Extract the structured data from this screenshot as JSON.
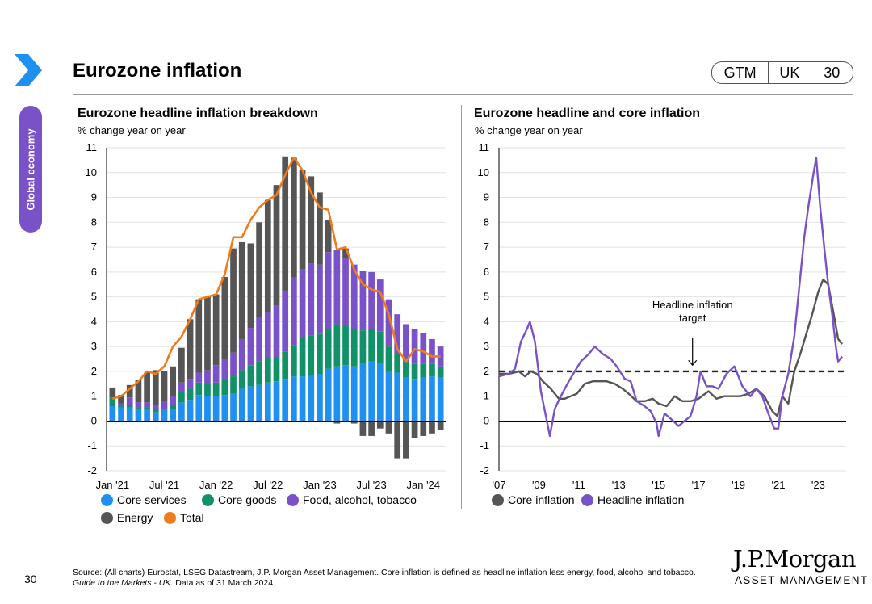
{
  "page": {
    "title": "Eurozone inflation",
    "section": "Global economy",
    "badges": [
      "GTM",
      "UK",
      "30"
    ],
    "page_number": "30",
    "source_main": "Source: (All charts) Eurostat, LSEG Datastream, J.P. Morgan Asset Management. Core inflation is defined as headline inflation less energy, food, alcohol and tobacco.",
    "source_italic": "Guide to the Markets - UK.",
    "source_tail": "Data as of 31 March 2024.",
    "logo_line1": "J.P.Morgan",
    "logo_line2": "ASSET MANAGEMENT"
  },
  "left_chart": {
    "title": "Eurozone headline inflation breakdown",
    "subtitle": "% change year on year",
    "legend": [
      {
        "label": "Core services",
        "color": "#1e90ef"
      },
      {
        "label": "Core goods",
        "color": "#119167"
      },
      {
        "label": "Food, alcohol, tobacco",
        "color": "#7a52c7"
      },
      {
        "label": "Energy",
        "color": "#555555"
      },
      {
        "label": "Total",
        "color": "#f07b1b"
      }
    ]
  },
  "right_chart": {
    "title": "Eurozone headline and core inflation",
    "subtitle": "% change year on year",
    "annotation_line1": "Headline inflation",
    "annotation_line2": "target",
    "legend": [
      {
        "label": "Core inflation",
        "color": "#555555"
      },
      {
        "label": "Headline inflation",
        "color": "#7a52c7"
      }
    ]
  },
  "chart_data": [
    {
      "type": "bar",
      "stacked": true,
      "title": "Eurozone headline inflation breakdown",
      "ylabel": "% change year on year",
      "ylim": [
        -2,
        11
      ],
      "yticks": [
        -2,
        -1,
        0,
        1,
        2,
        3,
        4,
        5,
        6,
        7,
        8,
        9,
        10,
        11
      ],
      "tick_labels": [
        "Jan '21",
        "Jul '21",
        "Jan '22",
        "Jul '22",
        "Jan '23",
        "Jul '23",
        "Jan '24"
      ],
      "tick_index": [
        0,
        6,
        12,
        18,
        24,
        30,
        36
      ],
      "categories": [
        "Jan '21",
        "Feb '21",
        "Mar '21",
        "Apr '21",
        "May '21",
        "Jun '21",
        "Jul '21",
        "Aug '21",
        "Sep '21",
        "Oct '21",
        "Nov '21",
        "Dec '21",
        "Jan '22",
        "Feb '22",
        "Mar '22",
        "Apr '22",
        "May '22",
        "Jun '22",
        "Jul '22",
        "Aug '22",
        "Sep '22",
        "Oct '22",
        "Nov '22",
        "Dec '22",
        "Jan '23",
        "Feb '23",
        "Mar '23",
        "Apr '23",
        "May '23",
        "Jun '23",
        "Jul '23",
        "Aug '23",
        "Sep '23",
        "Oct '23",
        "Nov '23",
        "Dec '23",
        "Jan '24",
        "Feb '24",
        "Mar '24"
      ],
      "series": [
        {
          "name": "Core services",
          "values": [
            0.6,
            0.55,
            0.55,
            0.45,
            0.45,
            0.35,
            0.45,
            0.5,
            0.75,
            0.85,
            1.05,
            1.0,
            1.0,
            1.05,
            1.1,
            1.3,
            1.4,
            1.45,
            1.55,
            1.6,
            1.7,
            1.8,
            1.8,
            1.85,
            1.9,
            2.1,
            2.2,
            2.25,
            2.2,
            2.35,
            2.4,
            2.35,
            2.0,
            1.95,
            1.75,
            1.7,
            1.75,
            1.8,
            1.75
          ]
        },
        {
          "name": "Core goods",
          "values": [
            0.35,
            0.05,
            0.1,
            0.1,
            0.1,
            0.15,
            0.05,
            0.15,
            0.45,
            0.45,
            0.5,
            0.5,
            0.55,
            0.6,
            0.7,
            0.75,
            0.85,
            0.95,
            1.0,
            0.95,
            1.1,
            1.25,
            1.55,
            1.6,
            1.6,
            1.6,
            1.7,
            1.6,
            1.5,
            1.3,
            1.3,
            1.25,
            1.0,
            0.75,
            0.65,
            0.6,
            0.55,
            0.5,
            0.45
          ]
        },
        {
          "name": "Food, alcohol, tobacco",
          "values": [
            0.0,
            0.1,
            0.3,
            0.2,
            0.2,
            0.15,
            0.3,
            0.35,
            0.35,
            0.4,
            0.4,
            0.55,
            0.7,
            0.85,
            0.95,
            1.25,
            1.5,
            1.8,
            1.85,
            2.1,
            2.45,
            2.75,
            2.75,
            2.9,
            2.8,
            3.1,
            3.0,
            2.7,
            2.6,
            2.4,
            2.3,
            2.1,
            1.9,
            1.6,
            1.5,
            1.4,
            1.25,
            1.0,
            0.8
          ]
        },
        {
          "name": "Energy",
          "values": [
            0.4,
            0.35,
            0.5,
            0.9,
            1.2,
            1.4,
            1.2,
            1.2,
            1.4,
            2.4,
            2.95,
            2.95,
            2.85,
            3.3,
            4.2,
            3.9,
            3.4,
            3.8,
            4.5,
            4.85,
            5.4,
            4.8,
            4.0,
            3.5,
            2.9,
            1.3,
            -0.1,
            0.4,
            -0.1,
            -0.6,
            -0.6,
            -0.3,
            -0.5,
            -1.5,
            -1.5,
            -0.7,
            -0.6,
            -0.5,
            -0.35
          ]
        },
        {
          "name": "Total",
          "values": [
            0.9,
            1.0,
            1.3,
            1.6,
            2.0,
            1.9,
            2.2,
            3.0,
            3.4,
            4.1,
            4.9,
            5.0,
            5.1,
            5.9,
            7.4,
            7.4,
            8.1,
            8.6,
            8.9,
            9.1,
            9.9,
            10.6,
            10.1,
            9.2,
            8.6,
            8.5,
            6.9,
            7.0,
            6.1,
            5.5,
            5.3,
            5.2,
            4.3,
            2.9,
            2.4,
            2.9,
            2.8,
            2.6,
            2.6
          ]
        }
      ]
    },
    {
      "type": "line",
      "title": "Eurozone headline and core inflation",
      "ylabel": "% change year on year",
      "ylim": [
        -2,
        11
      ],
      "yticks": [
        -2,
        -1,
        0,
        1,
        2,
        3,
        4,
        5,
        6,
        7,
        8,
        9,
        10,
        11
      ],
      "xlim": [
        2007.0,
        2024.4
      ],
      "xticks": [
        2007,
        2009,
        2011,
        2013,
        2015,
        2017,
        2019,
        2021,
        2023
      ],
      "xtick_labels": [
        "'07",
        "'09",
        "'11",
        "'13",
        "'15",
        "'17",
        "'19",
        "'21",
        "'23"
      ],
      "target": 2.0,
      "series": [
        {
          "name": "Core inflation",
          "x": [
            2007.0,
            2007.5,
            2008.0,
            2008.3,
            2008.6,
            2008.9,
            2009.2,
            2009.6,
            2010.0,
            2010.3,
            2010.6,
            2010.9,
            2011.3,
            2011.7,
            2012.0,
            2012.4,
            2012.8,
            2013.2,
            2013.5,
            2013.9,
            2014.3,
            2014.7,
            2015.0,
            2015.4,
            2015.8,
            2016.2,
            2016.6,
            2017.0,
            2017.5,
            2017.9,
            2018.3,
            2018.7,
            2019.1,
            2019.5,
            2019.9,
            2020.3,
            2020.7,
            2020.95,
            2021.2,
            2021.5,
            2021.8,
            2022.1,
            2022.4,
            2022.7,
            2023.0,
            2023.25,
            2023.5,
            2023.8,
            2024.0,
            2024.2
          ],
          "y": [
            1.9,
            1.9,
            2.0,
            1.8,
            2.0,
            1.9,
            1.6,
            1.3,
            0.9,
            0.9,
            1.0,
            1.1,
            1.5,
            1.6,
            1.6,
            1.6,
            1.5,
            1.3,
            1.1,
            0.8,
            0.8,
            0.9,
            0.7,
            0.6,
            1.0,
            0.8,
            0.8,
            0.9,
            1.2,
            0.9,
            1.0,
            1.0,
            1.0,
            1.1,
            1.3,
            1.0,
            0.4,
            0.2,
            1.0,
            0.7,
            2.0,
            2.7,
            3.5,
            4.3,
            5.2,
            5.7,
            5.5,
            4.2,
            3.3,
            3.1
          ]
        },
        {
          "name": "Headline inflation",
          "x": [
            2007.0,
            2007.5,
            2007.8,
            2008.1,
            2008.4,
            2008.55,
            2008.8,
            2009.1,
            2009.4,
            2009.55,
            2009.8,
            2010.1,
            2010.5,
            2010.8,
            2011.1,
            2011.5,
            2011.8,
            2012.2,
            2012.6,
            2012.9,
            2013.3,
            2013.6,
            2013.9,
            2014.3,
            2014.6,
            2014.9,
            2015.0,
            2015.3,
            2015.6,
            2016.0,
            2016.3,
            2016.6,
            2016.9,
            2017.1,
            2017.4,
            2017.7,
            2018.0,
            2018.4,
            2018.8,
            2019.2,
            2019.6,
            2019.9,
            2020.2,
            2020.5,
            2020.8,
            2021.0,
            2021.2,
            2021.5,
            2021.8,
            2022.0,
            2022.3,
            2022.5,
            2022.75,
            2022.9,
            2023.1,
            2023.3,
            2023.5,
            2023.7,
            2023.9,
            2024.0,
            2024.2
          ],
          "y": [
            1.8,
            1.9,
            2.1,
            3.2,
            3.7,
            4.0,
            3.2,
            1.2,
            0.0,
            -0.6,
            0.5,
            1.0,
            1.6,
            2.0,
            2.4,
            2.7,
            3.0,
            2.7,
            2.5,
            2.2,
            1.7,
            1.6,
            0.8,
            0.6,
            0.4,
            -0.1,
            -0.6,
            0.3,
            0.1,
            -0.2,
            0.0,
            0.2,
            1.0,
            2.0,
            1.4,
            1.4,
            1.3,
            1.9,
            2.2,
            1.4,
            1.0,
            1.3,
            1.0,
            0.3,
            -0.3,
            -0.3,
            1.0,
            1.9,
            3.4,
            5.0,
            7.4,
            8.6,
            9.9,
            10.6,
            8.6,
            7.0,
            5.5,
            4.3,
            2.9,
            2.4,
            2.6
          ]
        }
      ]
    }
  ]
}
